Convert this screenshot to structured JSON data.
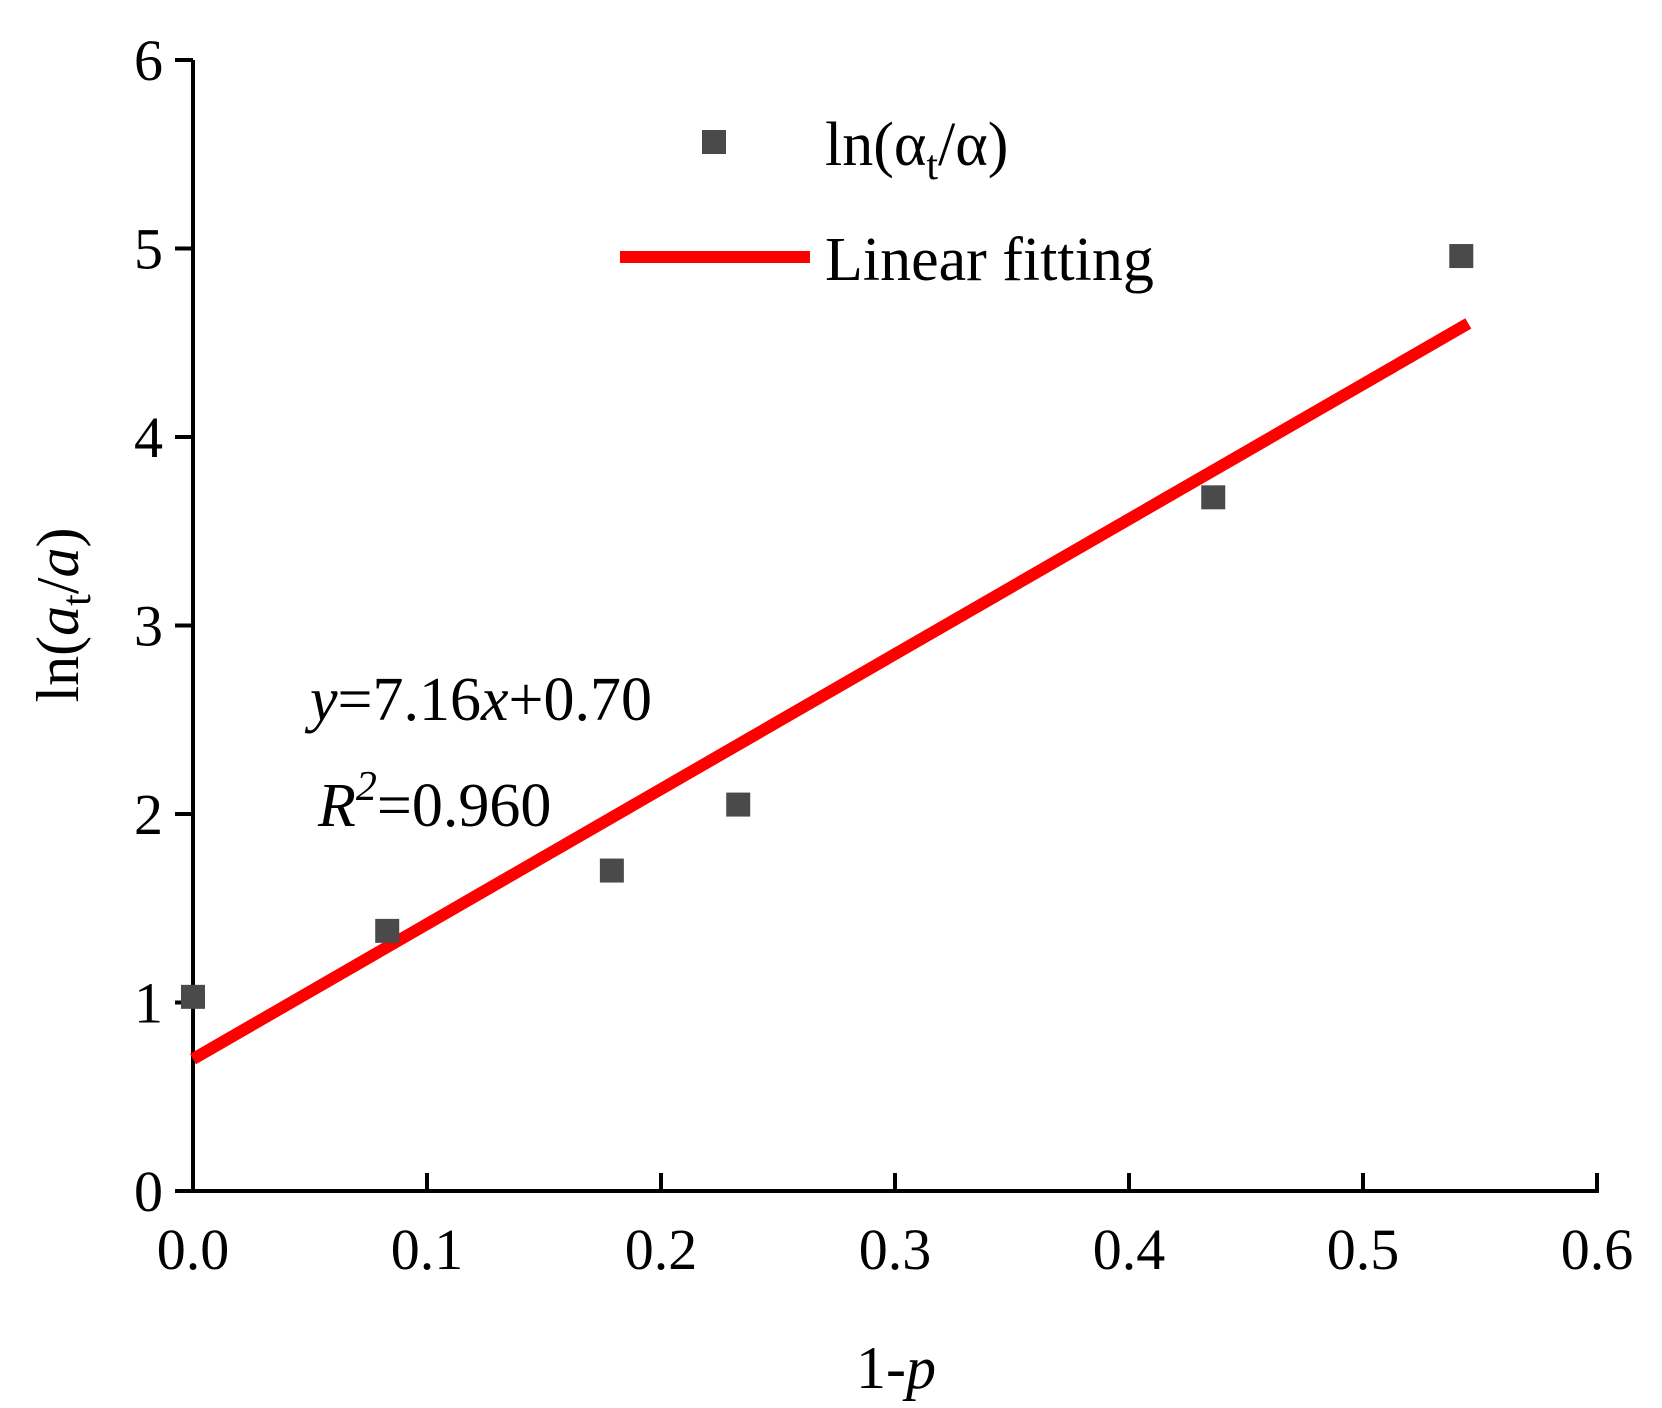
{
  "chart_data": {
    "type": "scatter",
    "xlabel": {
      "main": "1-",
      "italic": "p"
    },
    "ylabel": {
      "prefix": "ln(",
      "a1": "a",
      "sub": "t",
      "slash": "/",
      "a2": "a",
      "suffix": ")"
    },
    "xlim": [
      0.0,
      0.6
    ],
    "ylim": [
      0,
      6
    ],
    "x_ticks": [
      0.0,
      0.1,
      0.2,
      0.3,
      0.4,
      0.5,
      0.6
    ],
    "x_tick_labels": [
      "0.0",
      "0.1",
      "0.2",
      "0.3",
      "0.4",
      "0.5",
      "0.6"
    ],
    "y_ticks": [
      0,
      1,
      2,
      3,
      4,
      5,
      6
    ],
    "y_tick_labels": [
      "0",
      "1",
      "2",
      "3",
      "4",
      "5",
      "6"
    ],
    "grid": false,
    "legend_position": "top-right",
    "series": [
      {
        "name": "ln(αt/α)",
        "name_parts": {
          "prefix": "ln(",
          "a1": "α",
          "sub": "t",
          "rest": "/α)"
        },
        "kind": "scatter",
        "color": "#4a4a4a",
        "x": [
          0.0,
          0.083,
          0.179,
          0.233,
          0.436,
          0.542
        ],
        "y": [
          1.03,
          1.38,
          1.7,
          2.05,
          3.68,
          4.96
        ]
      },
      {
        "name": "Linear fitting",
        "kind": "line",
        "color": "#ff0000",
        "slope": 7.16,
        "intercept": 0.7,
        "x_range": [
          0.0,
          0.545
        ]
      }
    ],
    "annotations": {
      "equation": {
        "y": "y",
        "eq1": "=7.16",
        "x": "x",
        "eq2": "+0.70"
      },
      "r_squared": {
        "R": "R",
        "sup": "2",
        "eq": "=0.960"
      }
    }
  }
}
